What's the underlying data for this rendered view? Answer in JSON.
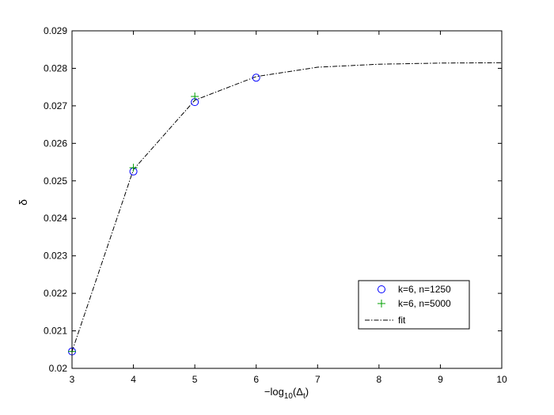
{
  "chart_data": {
    "type": "line",
    "title": "",
    "xlabel_main": "−log",
    "xlabel_sub": "10",
    "xlabel_paren_open": "(Δ",
    "xlabel_paren_sub": "t",
    "xlabel_paren_close": ")",
    "ylabel": "δ",
    "xlim": [
      3,
      10
    ],
    "ylim": [
      0.02,
      0.029
    ],
    "xticks": [
      3,
      4,
      5,
      6,
      7,
      8,
      9,
      10
    ],
    "yticks": [
      0.02,
      0.021,
      0.022,
      0.023,
      0.024,
      0.025,
      0.026,
      0.027,
      0.028,
      0.029
    ],
    "ytick_labels": [
      "0.02",
      "0.021",
      "0.022",
      "0.023",
      "0.024",
      "0.025",
      "0.026",
      "0.027",
      "0.028",
      "0.029"
    ],
    "grid": false,
    "legend_position": "bottom-right",
    "series": [
      {
        "name": "k=6, n=1250",
        "marker": "circle",
        "color": "#0000ff",
        "x": [
          3,
          4,
          5,
          6
        ],
        "y": [
          0.02045,
          0.02525,
          0.0271,
          0.02775
        ]
      },
      {
        "name": "k=6, n=5000",
        "marker": "plus",
        "color": "#00a000",
        "x": [
          3,
          4,
          5
        ],
        "y": [
          0.02045,
          0.02535,
          0.02725
        ]
      },
      {
        "name": "fit",
        "marker": "none",
        "line_style": "dash-dot",
        "color": "#000000",
        "x": [
          3,
          4,
          5,
          6,
          7,
          8,
          9,
          10
        ],
        "y": [
          0.02045,
          0.0253,
          0.02715,
          0.02778,
          0.02803,
          0.02811,
          0.02814,
          0.02815
        ]
      }
    ]
  }
}
